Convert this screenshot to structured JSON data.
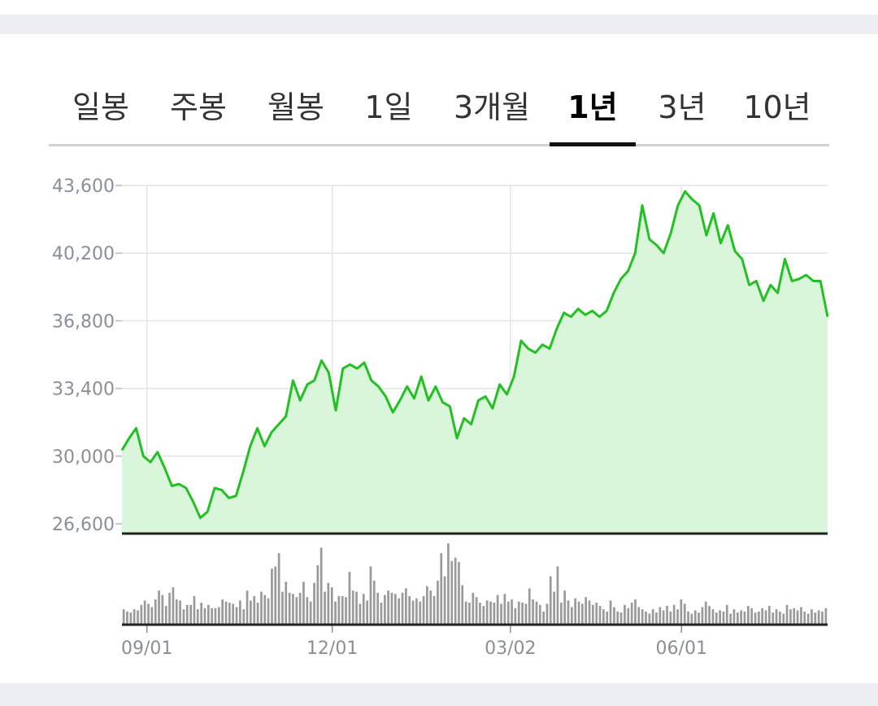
{
  "tabs": [
    {
      "label": "일봉",
      "active": false
    },
    {
      "label": "주봉",
      "active": false
    },
    {
      "label": "월봉",
      "active": false
    },
    {
      "label": "1일",
      "active": false
    },
    {
      "label": "3개월",
      "active": false
    },
    {
      "label": "1년",
      "active": true
    },
    {
      "label": "3년",
      "active": false
    },
    {
      "label": "10년",
      "active": false
    }
  ],
  "colors": {
    "line": "#22c022",
    "fill": "#daf6da",
    "grid": "#e2e4e7",
    "axis": "#222222",
    "volume": "#9a9a9a",
    "label": "#8a8f97"
  },
  "chart_data": {
    "type": "area",
    "y_ticks": [
      "43,600",
      "40,200",
      "36,800",
      "33,400",
      "30,000",
      "26,600"
    ],
    "x_ticks": [
      "09/01",
      "12/01",
      "03/02",
      "06/01"
    ],
    "ylim": [
      26600,
      43600
    ],
    "grid": true,
    "price": [
      [
        "08/19",
        30300
      ],
      [
        "08/22",
        30900
      ],
      [
        "08/26",
        31400
      ],
      [
        "08/29",
        30000
      ],
      [
        "09/02",
        29700
      ],
      [
        "09/05",
        30200
      ],
      [
        "09/08",
        29400
      ],
      [
        "09/12",
        28500
      ],
      [
        "09/16",
        28600
      ],
      [
        "09/20",
        28400
      ],
      [
        "09/24",
        27700
      ],
      [
        "09/28",
        26900
      ],
      [
        "10/02",
        27200
      ],
      [
        "10/05",
        28400
      ],
      [
        "10/09",
        28300
      ],
      [
        "10/13",
        27900
      ],
      [
        "10/16",
        28000
      ],
      [
        "10/19",
        29200
      ],
      [
        "10/22",
        30500
      ],
      [
        "10/25",
        31400
      ],
      [
        "10/28",
        30500
      ],
      [
        "10/31",
        31200
      ],
      [
        "11/03",
        31600
      ],
      [
        "11/07",
        32000
      ],
      [
        "11/10",
        33800
      ],
      [
        "11/13",
        32800
      ],
      [
        "11/17",
        33600
      ],
      [
        "11/21",
        33800
      ],
      [
        "11/25",
        34800
      ],
      [
        "11/28",
        34200
      ],
      [
        "12/01",
        32300
      ],
      [
        "12/04",
        34400
      ],
      [
        "12/07",
        34600
      ],
      [
        "12/10",
        34400
      ],
      [
        "12/14",
        34700
      ],
      [
        "12/18",
        33800
      ],
      [
        "12/22",
        33500
      ],
      [
        "12/27",
        33000
      ],
      [
        "12/31",
        32200
      ],
      [
        "01/04",
        32800
      ],
      [
        "01/08",
        33500
      ],
      [
        "01/12",
        32900
      ],
      [
        "01/16",
        34000
      ],
      [
        "01/19",
        32800
      ],
      [
        "01/23",
        33500
      ],
      [
        "01/28",
        32700
      ],
      [
        "02/01",
        32500
      ],
      [
        "02/04",
        30900
      ],
      [
        "02/07",
        31900
      ],
      [
        "02/10",
        31600
      ],
      [
        "02/13",
        32800
      ],
      [
        "02/17",
        33000
      ],
      [
        "02/21",
        32400
      ],
      [
        "02/25",
        33600
      ],
      [
        "03/01",
        33100
      ],
      [
        "03/04",
        34000
      ],
      [
        "03/07",
        35800
      ],
      [
        "03/10",
        35400
      ],
      [
        "03/14",
        35200
      ],
      [
        "03/18",
        35600
      ],
      [
        "03/22",
        35400
      ],
      [
        "03/26",
        36400
      ],
      [
        "03/29",
        37200
      ],
      [
        "04/02",
        37000
      ],
      [
        "04/06",
        37400
      ],
      [
        "04/10",
        37100
      ],
      [
        "04/14",
        37300
      ],
      [
        "04/18",
        37000
      ],
      [
        "04/22",
        37300
      ],
      [
        "04/26",
        38200
      ],
      [
        "04/30",
        38900
      ],
      [
        "05/04",
        39300
      ],
      [
        "05/07",
        40200
      ],
      [
        "05/10",
        42600
      ],
      [
        "05/13",
        40900
      ],
      [
        "05/17",
        40600
      ],
      [
        "05/21",
        40200
      ],
      [
        "05/25",
        41200
      ],
      [
        "05/29",
        42600
      ],
      [
        "06/02",
        43300
      ],
      [
        "06/06",
        42900
      ],
      [
        "06/10",
        42600
      ],
      [
        "06/13",
        41100
      ],
      [
        "06/17",
        42200
      ],
      [
        "06/21",
        40700
      ],
      [
        "06/25",
        41600
      ],
      [
        "06/29",
        40300
      ],
      [
        "07/03",
        39900
      ],
      [
        "07/07",
        38600
      ],
      [
        "07/11",
        38800
      ],
      [
        "07/15",
        37800
      ],
      [
        "07/19",
        38600
      ],
      [
        "07/23",
        38200
      ],
      [
        "07/27",
        39900
      ],
      [
        "07/31",
        38800
      ],
      [
        "08/04",
        38900
      ],
      [
        "08/08",
        39100
      ],
      [
        "08/12",
        38800
      ],
      [
        "08/16",
        38800
      ],
      [
        "08/19",
        37000
      ]
    ],
    "volume": [
      14,
      12,
      11,
      14,
      13,
      18,
      22,
      19,
      16,
      23,
      31,
      27,
      17,
      29,
      34,
      23,
      22,
      14,
      18,
      18,
      26,
      14,
      20,
      15,
      18,
      15,
      15,
      16,
      23,
      21,
      20,
      19,
      16,
      22,
      14,
      31,
      22,
      26,
      20,
      30,
      27,
      24,
      51,
      53,
      65,
      30,
      39,
      29,
      28,
      25,
      29,
      39,
      25,
      21,
      38,
      54,
      70,
      30,
      38,
      34,
      21,
      26,
      26,
      25,
      48,
      31,
      30,
      19,
      28,
      22,
      53,
      40,
      29,
      20,
      27,
      31,
      29,
      28,
      24,
      29,
      33,
      26,
      22,
      24,
      21,
      26,
      35,
      31,
      26,
      40,
      65,
      44,
      74,
      58,
      61,
      57,
      36,
      21,
      20,
      29,
      25,
      20,
      17,
      22,
      21,
      20,
      27,
      19,
      28,
      21,
      23,
      15,
      21,
      20,
      19,
      33,
      23,
      21,
      18,
      12,
      19,
      44,
      30,
      53,
      20,
      31,
      22,
      16,
      24,
      21,
      19,
      25,
      22,
      18,
      20,
      17,
      14,
      12,
      22,
      16,
      12,
      11,
      18,
      15,
      20,
      23,
      16,
      14,
      12,
      10,
      14,
      11,
      16,
      13,
      17,
      12,
      18,
      14,
      23,
      19,
      12,
      10,
      13,
      11,
      16,
      21,
      17,
      14,
      11,
      13,
      12,
      18,
      10,
      14,
      11,
      13,
      12,
      17,
      15,
      11,
      12,
      15,
      13,
      17,
      11,
      14,
      12,
      10,
      18,
      14,
      15,
      13,
      16,
      12,
      10,
      14,
      11,
      13,
      12,
      15
    ]
  }
}
